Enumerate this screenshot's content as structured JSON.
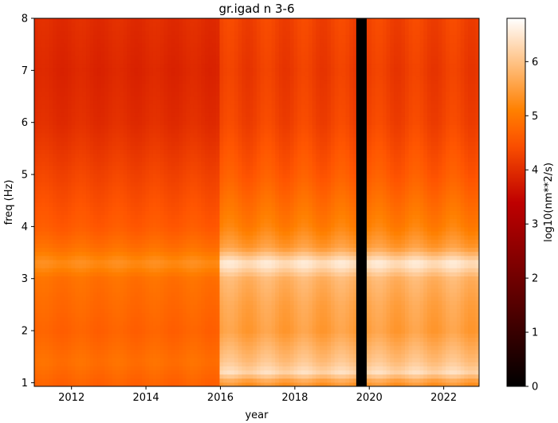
{
  "chart_data": {
    "type": "heatmap",
    "title": "gr.igad n 3-6",
    "xlabel": "year",
    "ylabel": "freq (Hz)",
    "xlim": [
      2011.0,
      2022.95
    ],
    "ylim": [
      0.93,
      8.0
    ],
    "x_ticks": [
      2012,
      2014,
      2016,
      2018,
      2020,
      2022
    ],
    "y_ticks": [
      1,
      2,
      3,
      4,
      5,
      6,
      7,
      8
    ],
    "x_tick_labels": [
      "2012",
      "2014",
      "2016",
      "2018",
      "2020",
      "2022"
    ],
    "y_tick_labels": [
      "1",
      "2",
      "3",
      "4",
      "5",
      "6",
      "7",
      "8"
    ],
    "colorbar": {
      "label": "log10(nm**2/s)",
      "colormap": "gist_heat",
      "range": [
        0,
        6.8
      ],
      "ticks": [
        0,
        1,
        2,
        3,
        4,
        5,
        6
      ],
      "tick_labels": [
        "0",
        "1",
        "2",
        "3",
        "4",
        "5",
        "6"
      ]
    },
    "data_gap": {
      "from_year": 2019.65,
      "to_year": 2019.93,
      "value": 0
    },
    "values_by_frequency": [
      {
        "freq": 1.0,
        "before_2016": 4.7,
        "after_2016": 5.4
      },
      {
        "freq": 1.2,
        "before_2016": 4.8,
        "after_2016": 6.3
      },
      {
        "freq": 1.4,
        "before_2016": 4.9,
        "after_2016": 6.0
      },
      {
        "freq": 2.0,
        "before_2016": 4.7,
        "after_2016": 5.5
      },
      {
        "freq": 2.5,
        "before_2016": 4.8,
        "after_2016": 5.6
      },
      {
        "freq": 3.0,
        "before_2016": 4.9,
        "after_2016": 5.8
      },
      {
        "freq": 3.3,
        "before_2016": 5.3,
        "after_2016": 6.5
      },
      {
        "freq": 3.6,
        "before_2016": 4.9,
        "after_2016": 5.5
      },
      {
        "freq": 4.0,
        "before_2016": 4.6,
        "after_2016": 5.1
      },
      {
        "freq": 5.0,
        "before_2016": 4.3,
        "after_2016": 4.6
      },
      {
        "freq": 6.0,
        "before_2016": 4.0,
        "after_2016": 4.3
      },
      {
        "freq": 7.0,
        "before_2016": 3.9,
        "after_2016": 4.2
      },
      {
        "freq": 8.0,
        "before_2016": 4.0,
        "after_2016": 4.3
      }
    ]
  }
}
